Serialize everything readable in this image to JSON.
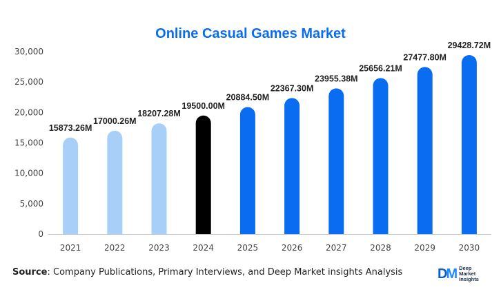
{
  "chart_data": {
    "type": "bar",
    "title": "Online Casual Games Market",
    "categories": [
      "2021",
      "2022",
      "2023",
      "2024",
      "2025",
      "2026",
      "2027",
      "2028",
      "2029",
      "2030"
    ],
    "values": [
      15873.26,
      17000.26,
      18207.28,
      19500.0,
      20884.5,
      22367.3,
      23955.38,
      25656.21,
      27477.8,
      29428.72
    ],
    "data_labels": [
      "15873.26M",
      "17000.26M",
      "18207.28M",
      "19500.00M",
      "20884.50M",
      "22367.30M",
      "23955.38M",
      "25656.21M",
      "27477.80M",
      "29428.72M"
    ],
    "ylim": [
      0,
      30000
    ],
    "yticks": [
      0,
      5000,
      10000,
      15000,
      20000,
      25000,
      30000
    ],
    "ytick_labels": [
      "0",
      "5,000",
      "10,000",
      "15,000",
      "20,000",
      "25,000",
      "30,000"
    ],
    "bar_colors": [
      "#a8cff8",
      "#a8cff8",
      "#a8cff8",
      "#000000",
      "#0a6cf0",
      "#0a6cf0",
      "#0a6cf0",
      "#0a6cf0",
      "#0a6cf0",
      "#0a6cf0"
    ],
    "xlabel": "",
    "ylabel": "",
    "grid": false,
    "legend": "none"
  },
  "source": {
    "label": "Source",
    "text": ": Company Publications, Primary Interviews, and Deep Market insights Analysis"
  },
  "logo": {
    "mark_d": "D",
    "mark_m": "M",
    "line1": "Deep",
    "line2": "Market",
    "line3": "Insights"
  }
}
